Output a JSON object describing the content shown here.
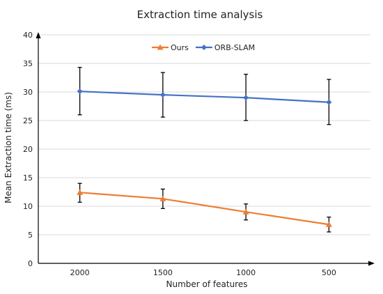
{
  "chart_data": {
    "type": "line",
    "title": "Extraction time analysis",
    "xlabel": "Number of features",
    "ylabel": "Mean Extraction time (ms)",
    "categories": [
      "2000",
      "1500",
      "1000",
      "500"
    ],
    "ylim": [
      0,
      40
    ],
    "yticks": [
      0,
      5,
      10,
      15,
      20,
      25,
      30,
      35,
      40
    ],
    "grid": true,
    "legend_position": "top",
    "series": [
      {
        "name": "Ours",
        "color": "#ed7d31",
        "marker": "triangle",
        "values": [
          12.4,
          11.3,
          9.0,
          6.8
        ],
        "error_low": [
          10.7,
          9.6,
          7.6,
          5.5
        ],
        "error_high": [
          14.0,
          13.0,
          10.4,
          8.1
        ]
      },
      {
        "name": "ORB-SLAM",
        "color": "#4472c4",
        "marker": "diamond",
        "values": [
          30.1,
          29.5,
          29.0,
          28.2
        ],
        "error_low": [
          26.0,
          25.6,
          25.0,
          24.3
        ],
        "error_high": [
          34.3,
          33.4,
          33.1,
          32.2
        ]
      }
    ]
  }
}
